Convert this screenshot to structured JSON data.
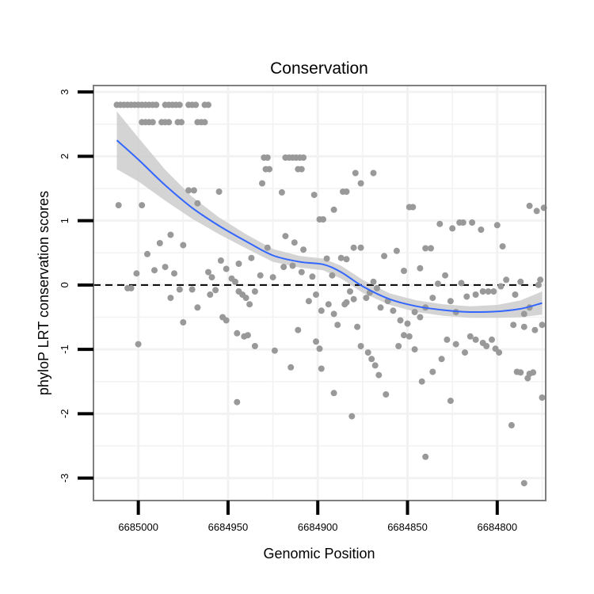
{
  "chart_data": {
    "type": "scatter",
    "title": "Conservation",
    "xlabel": "Genomic Position",
    "ylabel": "phyloP LRT conservation scores",
    "xlim": [
      6685025,
      6684773
    ],
    "x_reversed": true,
    "ylim": [
      -3.35,
      3.1
    ],
    "xticks": [
      6685000,
      6684950,
      6684900,
      6684850,
      6684800
    ],
    "xtick_labels": [
      "6685000",
      "6684950",
      "6684900",
      "6684850",
      "6684800"
    ],
    "yticks": [
      3,
      2,
      1,
      0,
      -1,
      -2,
      -3
    ],
    "ytick_labels": [
      "3",
      "2",
      "1",
      "0",
      "-1",
      "-2",
      "-3"
    ],
    "grid": true,
    "reference_line": {
      "y": 0,
      "style": "dashed"
    },
    "colors": {
      "points": "#999999",
      "smooth_line": "#3366ff",
      "confidence_band": "#cccccc",
      "frame": "#7f7f7f",
      "grid": "#f2f2f2"
    },
    "series": [
      {
        "name": "scores",
        "points": [
          [
            6685012,
            2.8
          ],
          [
            6685010,
            2.8
          ],
          [
            6685008,
            2.8
          ],
          [
            6685006,
            2.8
          ],
          [
            6685004,
            2.8
          ],
          [
            6685002,
            2.8
          ],
          [
            6685000,
            2.8
          ],
          [
            6684998,
            2.8
          ],
          [
            6684996,
            2.8
          ],
          [
            6684994,
            2.8
          ],
          [
            6684992,
            2.8
          ],
          [
            6684990,
            2.8
          ],
          [
            6684985,
            2.8
          ],
          [
            6684983,
            2.8
          ],
          [
            6684981,
            2.8
          ],
          [
            6684979,
            2.8
          ],
          [
            6684977,
            2.8
          ],
          [
            6684972,
            2.8
          ],
          [
            6684970,
            2.8
          ],
          [
            6684968,
            2.8
          ],
          [
            6684963,
            2.8
          ],
          [
            6684961,
            2.8
          ],
          [
            6684998,
            2.53
          ],
          [
            6684996,
            2.53
          ],
          [
            6684994,
            2.53
          ],
          [
            6684992,
            2.53
          ],
          [
            6684987,
            2.53
          ],
          [
            6684985,
            2.53
          ],
          [
            6684983,
            2.53
          ],
          [
            6684978,
            2.53
          ],
          [
            6684976,
            2.53
          ],
          [
            6684967,
            2.53
          ],
          [
            6684965,
            2.53
          ],
          [
            6684963,
            2.53
          ],
          [
            6684930,
            1.98
          ],
          [
            6684928,
            1.98
          ],
          [
            6684918,
            1.98
          ],
          [
            6684916,
            1.98
          ],
          [
            6684914,
            1.98
          ],
          [
            6684912,
            1.98
          ],
          [
            6684910,
            1.98
          ],
          [
            6684908,
            1.98
          ],
          [
            6684929,
            1.8
          ],
          [
            6684927,
            1.8
          ],
          [
            6684911,
            1.8
          ],
          [
            6684909,
            1.8
          ],
          [
            6685011,
            1.24
          ],
          [
            6684998,
            1.24
          ],
          [
            6684972,
            1.47
          ],
          [
            6684969,
            1.47
          ],
          [
            6684955,
            1.45
          ],
          [
            6684967,
            1.27
          ],
          [
            6684931,
            1.58
          ],
          [
            6684920,
            1.44
          ],
          [
            6684902,
            1.4
          ],
          [
            6684899,
            1.02
          ],
          [
            6684897,
            1.02
          ],
          [
            6684891,
            1.17
          ],
          [
            6684886,
            1.45
          ],
          [
            6684884,
            1.45
          ],
          [
            6684879,
            1.74
          ],
          [
            6684876,
            1.58
          ],
          [
            6684869,
            1.74
          ],
          [
            6684849,
            1.21
          ],
          [
            6684847,
            1.21
          ],
          [
            6684995,
            0.48
          ],
          [
            6684988,
            0.65
          ],
          [
            6684982,
            0.78
          ],
          [
            6684975,
            0.62
          ],
          [
            6684954,
            0.38
          ],
          [
            6684951,
            0.25
          ],
          [
            6684944,
            0.33
          ],
          [
            6684937,
            0.42
          ],
          [
            6684928,
            0.58
          ],
          [
            6684918,
            0.76
          ],
          [
            6684913,
            0.66
          ],
          [
            6684908,
            0.55
          ],
          [
            6684895,
            0.41
          ],
          [
            6684892,
            0.15
          ],
          [
            6684887,
            0.42
          ],
          [
            6684884,
            0.4
          ],
          [
            6684880,
            0.58
          ],
          [
            6684876,
            0.58
          ],
          [
            6684863,
            0.45
          ],
          [
            6684856,
            0.53
          ],
          [
            6684852,
            0.22
          ],
          [
            6684843,
            0.26
          ],
          [
            6684840,
            0.57
          ],
          [
            6684837,
            0.57
          ],
          [
            6684832,
            0.95
          ],
          [
            6684825,
            0.88
          ],
          [
            6684821,
            0.97
          ],
          [
            6684819,
            0.97
          ],
          [
            6684814,
            0.97
          ],
          [
            6684809,
            0.86
          ],
          [
            6684800,
            0.93
          ],
          [
            6684797,
            0.6
          ],
          [
            6684782,
            1.23
          ],
          [
            6684778,
            1.15
          ],
          [
            6684774,
            1.2
          ],
          [
            6685006,
            -0.05
          ],
          [
            6685004,
            -0.05
          ],
          [
            6685001,
            0.18
          ],
          [
            6684991,
            0.23
          ],
          [
            6684985,
            0.28
          ],
          [
            6684980,
            0.18
          ],
          [
            6684977,
            -0.07
          ],
          [
            6684970,
            -0.07
          ],
          [
            6684961,
            0.2
          ],
          [
            6684959,
            0.12
          ],
          [
            6684957,
            -0.08
          ],
          [
            6684948,
            0.1
          ],
          [
            6684946,
            0.05
          ],
          [
            6684944,
            -0.1
          ],
          [
            6684942,
            -0.15
          ],
          [
            6684940,
            -0.2
          ],
          [
            6684938,
            -0.3
          ],
          [
            6684935,
            -0.1
          ],
          [
            6684932,
            0.15
          ],
          [
            6684925,
            0.12
          ],
          [
            6684919,
            0.28
          ],
          [
            6684914,
            0.3
          ],
          [
            6684909,
            0.2
          ],
          [
            6684905,
            -0.25
          ],
          [
            6684903,
            0.13
          ],
          [
            6684901,
            -0.15
          ],
          [
            6684898,
            -0.4
          ],
          [
            6684894,
            -0.3
          ],
          [
            6684891,
            -0.45
          ],
          [
            6684889,
            -0.62
          ],
          [
            6684885,
            -0.3
          ],
          [
            6684880,
            -0.22
          ],
          [
            6684878,
            -0.65
          ],
          [
            6684873,
            -0.2
          ],
          [
            6684871,
            -0.12
          ],
          [
            6684869,
            0.05
          ],
          [
            6684867,
            -0.05
          ],
          [
            6684865,
            -0.35
          ],
          [
            6684861,
            -0.25
          ],
          [
            6684858,
            -0.4
          ],
          [
            6684854,
            -0.55
          ],
          [
            6684850,
            -0.6
          ],
          [
            6684846,
            -0.42
          ],
          [
            6684843,
            -0.5
          ],
          [
            6684840,
            -0.35
          ],
          [
            6684836,
            -0.2
          ],
          [
            6684833,
            0.02
          ],
          [
            6684829,
            0.15
          ],
          [
            6684826,
            -0.25
          ],
          [
            6684823,
            -0.42
          ],
          [
            6684820,
            0.03
          ],
          [
            6684817,
            -0.18
          ],
          [
            6684812,
            -0.15
          ],
          [
            6684808,
            -0.1
          ],
          [
            6684805,
            -0.1
          ],
          [
            6684802,
            -0.1
          ],
          [
            6684798,
            -0.02
          ],
          [
            6684795,
            0.08
          ],
          [
            6684790,
            -0.15
          ],
          [
            6684787,
            0.05
          ],
          [
            6684785,
            -0.45
          ],
          [
            6684782,
            -0.35
          ],
          [
            6684779,
            -0.7
          ],
          [
            6684777,
            0.0
          ],
          [
            6684776,
            0.08
          ],
          [
            6684775,
            -0.62
          ],
          [
            6685000,
            -0.92
          ],
          [
            6684982,
            -0.2
          ],
          [
            6684975,
            -0.58
          ],
          [
            6684967,
            -0.35
          ],
          [
            6684960,
            -0.15
          ],
          [
            6684953,
            -0.5
          ],
          [
            6684951,
            -0.55
          ],
          [
            6684945,
            -0.75
          ],
          [
            6684941,
            -0.8
          ],
          [
            6684939,
            -0.78
          ],
          [
            6684935,
            -0.95
          ],
          [
            6684924,
            -1.02
          ],
          [
            6684911,
            -0.7
          ],
          [
            6684901,
            -0.88
          ],
          [
            6684899,
            -0.99
          ],
          [
            6684891,
            -1.68
          ],
          [
            6684884,
            -0.27
          ],
          [
            6684882,
            -0.1
          ],
          [
            6684876,
            -0.95
          ],
          [
            6684872,
            -1.05
          ],
          [
            6684870,
            -1.15
          ],
          [
            6684868,
            -1.25
          ],
          [
            6684866,
            -1.4
          ],
          [
            6684862,
            -1.7
          ],
          [
            6684855,
            -0.95
          ],
          [
            6684852,
            -0.78
          ],
          [
            6684849,
            -0.8
          ],
          [
            6684846,
            -1.0
          ],
          [
            6684842,
            -1.5
          ],
          [
            6684840,
            -2.67
          ],
          [
            6684836,
            -1.35
          ],
          [
            6684831,
            -1.15
          ],
          [
            6684828,
            -0.85
          ],
          [
            6684826,
            -1.8
          ],
          [
            6684823,
            -0.92
          ],
          [
            6684818,
            -1.05
          ],
          [
            6684815,
            -0.8
          ],
          [
            6684812,
            -0.85
          ],
          [
            6684808,
            -0.9
          ],
          [
            6684806,
            -0.95
          ],
          [
            6684803,
            -0.85
          ],
          [
            6684801,
            -0.99
          ],
          [
            6684799,
            -1.05
          ],
          [
            6684792,
            -2.18
          ],
          [
            6684791,
            -0.62
          ],
          [
            6684789,
            -1.35
          ],
          [
            6684787,
            -1.36
          ],
          [
            6684785,
            -0.65
          ],
          [
            6684783,
            -1.45
          ],
          [
            6684782,
            -1.38
          ],
          [
            6684780,
            -1.36
          ],
          [
            6684775,
            -1.75
          ],
          [
            6684785,
            -3.08
          ],
          [
            6684945,
            -1.82
          ],
          [
            6684881,
            -2.04
          ],
          [
            6684915,
            -1.28
          ],
          [
            6684898,
            -1.3
          ]
        ]
      }
    ],
    "smooth_fit": {
      "method": "loess",
      "points": [
        [
          6685012,
          2.25
        ],
        [
          6685000,
          1.95
        ],
        [
          6684985,
          1.55
        ],
        [
          6684970,
          1.2
        ],
        [
          6684955,
          0.92
        ],
        [
          6684940,
          0.68
        ],
        [
          6684925,
          0.46
        ],
        [
          6684910,
          0.36
        ],
        [
          6684897,
          0.32
        ],
        [
          6684887,
          0.2
        ],
        [
          6684875,
          -0.02
        ],
        [
          6684860,
          -0.22
        ],
        [
          6684845,
          -0.33
        ],
        [
          6684830,
          -0.39
        ],
        [
          6684815,
          -0.42
        ],
        [
          6684800,
          -0.41
        ],
        [
          6684787,
          -0.37
        ],
        [
          6684775,
          -0.28
        ]
      ],
      "ci_halfwidth": [
        0.45,
        0.34,
        0.24,
        0.17,
        0.13,
        0.11,
        0.1,
        0.09,
        0.09,
        0.1,
        0.1,
        0.09,
        0.09,
        0.09,
        0.09,
        0.1,
        0.13,
        0.18
      ]
    }
  }
}
